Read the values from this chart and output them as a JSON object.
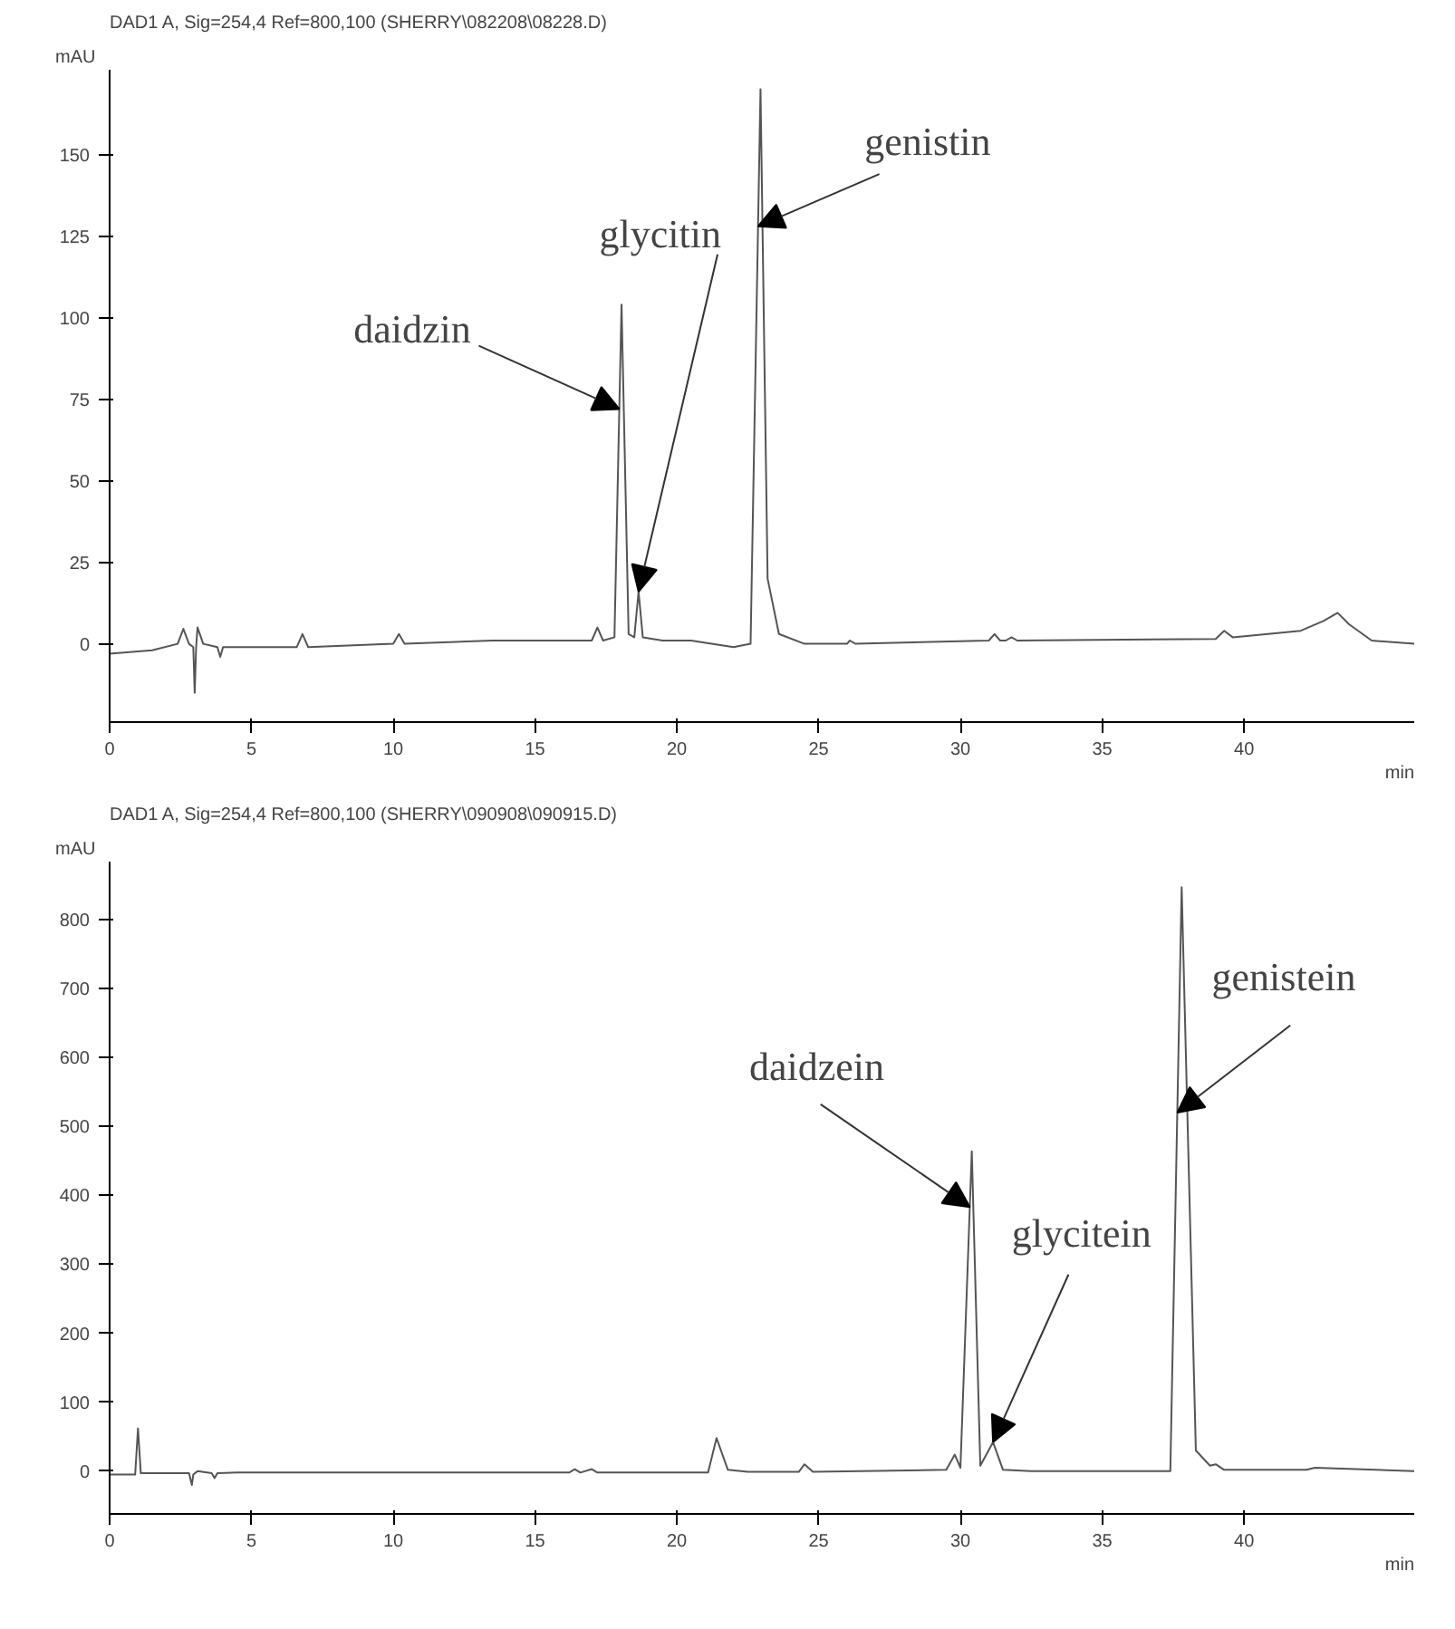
{
  "chart_data": [
    {
      "type": "line",
      "title": "DAD1 A, Sig=254,4 Ref=800,100 (SHERRY\\082208\\08228.D)",
      "xlabel": "min",
      "ylabel": "mAU",
      "xlim": [
        0,
        46
      ],
      "ylim": [
        -24,
        176
      ],
      "xticks": [
        0,
        5,
        10,
        15,
        20,
        25,
        30,
        35,
        40
      ],
      "yticks": [
        0,
        25,
        50,
        75,
        100,
        125,
        150
      ],
      "grid": false,
      "series": [
        {
          "color": "#555555",
          "x": [
            0,
            1.5,
            2.4,
            2.6,
            2.8,
            2.95,
            3.0,
            3.05,
            3.1,
            3.3,
            3.8,
            3.9,
            4.0,
            4.5,
            6.6,
            6.8,
            7.0,
            10.0,
            10.2,
            10.4,
            13.5,
            15.5,
            17.0,
            17.2,
            17.4,
            17.8,
            18.05,
            18.3,
            18.5,
            18.65,
            18.8,
            19.5,
            20.5,
            22.0,
            22.6,
            22.95,
            23.2,
            23.6,
            24.5,
            26.0,
            26.1,
            26.3,
            31.0,
            31.2,
            31.4,
            31.6,
            31.8,
            32.0,
            39.0,
            39.3,
            39.6,
            42.0,
            42.8,
            43.3,
            43.7,
            44.5,
            46
          ],
          "values": [
            -3,
            -2,
            0,
            4.6,
            0,
            -1,
            -15,
            -1,
            5,
            0,
            -1,
            -4,
            -1,
            -1,
            -1,
            3,
            -1,
            0,
            3,
            0,
            1,
            1,
            1,
            5,
            1,
            2,
            104,
            3,
            2,
            16,
            2,
            1,
            1,
            -1,
            0,
            170,
            20,
            3,
            0,
            0,
            1,
            0,
            1,
            3,
            1,
            1,
            2,
            1,
            1.5,
            4,
            2,
            4,
            7,
            9.5,
            6,
            1,
            0
          ]
        }
      ],
      "annotations": [
        {
          "text": "daidzin",
          "x": 17.97,
          "y": 72
        },
        {
          "text": "glycitin",
          "x": 18.65,
          "y": 16
        },
        {
          "text": "genistin",
          "x": 22.86,
          "y": 128
        }
      ]
    },
    {
      "type": "line",
      "title": "DAD1 A, Sig=254,4 Ref=800,100 (SHERRY\\090908\\090915.D)",
      "xlabel": "min",
      "ylabel": "mAU",
      "xlim": [
        0,
        46
      ],
      "ylim": [
        -62,
        884
      ],
      "xticks": [
        0,
        5,
        10,
        15,
        20,
        25,
        30,
        35,
        40
      ],
      "yticks": [
        0,
        100,
        200,
        300,
        400,
        500,
        600,
        700,
        800
      ],
      "grid": false,
      "series": [
        {
          "color": "#555555",
          "x": [
            0,
            0.9,
            1.0,
            1.1,
            2.8,
            2.9,
            2.95,
            3.1,
            3.6,
            3.7,
            3.8,
            4.5,
            16.2,
            16.4,
            16.6,
            17.0,
            17.2,
            21.1,
            21.4,
            21.8,
            22.5,
            24.3,
            24.5,
            24.8,
            29.5,
            29.8,
            30.0,
            30.4,
            30.7,
            31.15,
            31.5,
            32.5,
            37.4,
            37.8,
            38.3,
            38.8,
            39.0,
            39.3,
            42.2,
            42.5,
            46
          ],
          "values": [
            -5,
            -5,
            62,
            -3,
            -3,
            -20,
            -5,
            0,
            -3,
            -10,
            -3,
            -2,
            -2,
            3,
            -2,
            3,
            -2,
            -2,
            48,
            2,
            -1,
            -1,
            10,
            -1,
            2,
            24,
            5,
            464,
            8,
            42,
            2,
            0,
            0,
            847,
            30,
            8,
            10,
            2,
            2,
            5,
            0
          ]
        }
      ],
      "annotations": [
        {
          "text": "daidzein",
          "x": 30.33,
          "y": 383
        },
        {
          "text": "glycitein",
          "x": 31.15,
          "y": 42
        },
        {
          "text": "genistein",
          "x": 37.65,
          "y": 520
        }
      ]
    }
  ]
}
